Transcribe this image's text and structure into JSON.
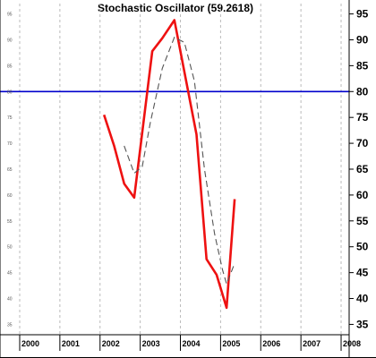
{
  "chart_data": {
    "type": "line",
    "title": "Stochastic Oscillator (59.2618)",
    "xlabel": "",
    "ylabel": "",
    "x_tick_labels": [
      "2000",
      "2001",
      "2002",
      "2003",
      "2004",
      "2005",
      "2006",
      "2007",
      "2008"
    ],
    "xlim": [
      2000,
      2008.2
    ],
    "ylim": [
      33,
      97
    ],
    "y_ticks_right": [
      35,
      40,
      45,
      50,
      55,
      60,
      65,
      70,
      75,
      80,
      85,
      90,
      95
    ],
    "y_ticks_left": [
      35,
      40,
      45,
      50,
      55,
      60,
      65,
      70,
      75,
      80,
      85,
      90,
      95
    ],
    "reference_line": {
      "value": 80,
      "color": "#0000cc"
    },
    "grid": "vertical dashed",
    "series": [
      {
        "style": "solid",
        "color": "#ee1111",
        "x": [
          2002.1,
          2002.35,
          2002.6,
          2002.85,
          2003.3,
          2003.55,
          2003.85,
          2004.4,
          2004.65,
          2004.9,
          2005.15,
          2005.35
        ],
        "y": [
          75.5,
          69.5,
          62.2,
          59.5,
          87.8,
          90.3,
          93.8,
          71.7,
          47.6,
          44.6,
          38.2,
          59.2
        ]
      },
      {
        "style": "dashed",
        "color": "#555555",
        "x": [
          2002.6,
          2002.85,
          2003.05,
          2003.25,
          2003.55,
          2003.85,
          2004.1,
          2004.35,
          2004.6,
          2004.85,
          2005.05,
          2005.15,
          2005.35
        ],
        "y": [
          69.5,
          64.2,
          65.5,
          74,
          84.5,
          90.5,
          89.5,
          82,
          65,
          52.5,
          45.5,
          42.8,
          46.8
        ]
      }
    ]
  }
}
